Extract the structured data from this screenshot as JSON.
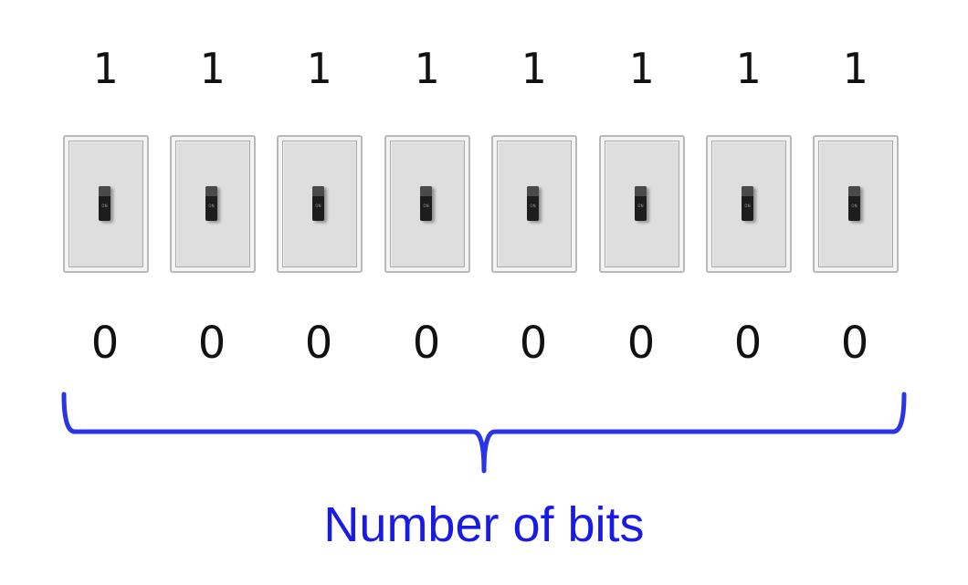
{
  "on_values": [
    "1",
    "1",
    "1",
    "1",
    "1",
    "1",
    "1",
    "1"
  ],
  "off_values": [
    "0",
    "0",
    "0",
    "0",
    "0",
    "0",
    "0",
    "0"
  ],
  "switch_label": "ON",
  "caption": "Number of bits",
  "colors": {
    "caption": "#1a1ae6",
    "brace": "#2a35e8",
    "plate": "#dedede",
    "toggle": "#1d1d1d"
  }
}
